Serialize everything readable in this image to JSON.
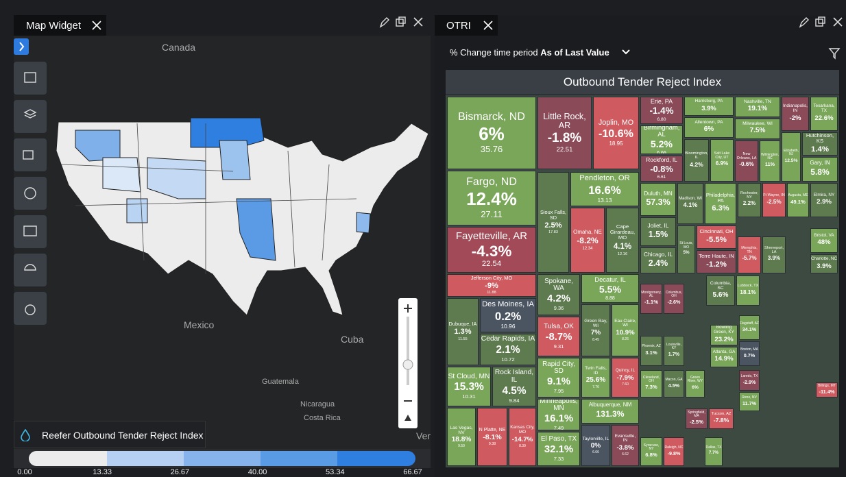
{
  "map_widget": {
    "title": "Map Widget",
    "places": [
      "Canada",
      "Mexico",
      "Cuba",
      "Guatemala",
      "Nicaragua",
      "Costa Rica",
      "Ver"
    ],
    "layer": "Reefer Outbound Tender Reject Index",
    "scale": [
      "0.00",
      "13.33",
      "26.67",
      "40.00",
      "53.34",
      "66.67"
    ]
  },
  "otri": {
    "tab": "OTRI",
    "period_label": "% Change time period",
    "period_value": "As of Last Value",
    "title": "Outbound Tender Reject Index",
    "tiles": [
      {
        "name": "Bismarck, ND",
        "change": "6%",
        "value": "35.76"
      },
      {
        "name": "Fargo, ND",
        "change": "12.4%",
        "value": "27.11"
      },
      {
        "name": "Fayetteville, AR",
        "change": "-4.3%",
        "value": "22.54"
      },
      {
        "name": "Little Rock, AR",
        "change": "-1.8%",
        "value": "22.51"
      },
      {
        "name": "Joplin, MO",
        "change": "-10.6%",
        "value": "18.95"
      },
      {
        "name": "Sioux Falls, SD",
        "change": "2.5%",
        "value": "17.83"
      },
      {
        "name": "Pendleton, OR",
        "change": "16.6%",
        "value": "13.13"
      },
      {
        "name": "Omaha, NE",
        "change": "-8.2%",
        "value": "12.34"
      },
      {
        "name": "Cape Girardeau, MO",
        "change": "4.1%",
        "value": "12.16"
      },
      {
        "name": "Jefferson City, MO",
        "change": "-9%",
        "value": "11.88"
      },
      {
        "name": "Dubuque, IA",
        "change": "1.3%",
        "value": "11.55"
      },
      {
        "name": "Des Moines, IA",
        "change": "0.2%",
        "value": "10.96"
      },
      {
        "name": "Cedar Rapids, IA",
        "change": "2.1%",
        "value": "10.72"
      },
      {
        "name": "St Cloud, MN",
        "change": "15.3%",
        "value": "10.31"
      },
      {
        "name": "Rock Island, IL",
        "change": "4.5%",
        "value": "9.84"
      },
      {
        "name": "Las Vegas, NV",
        "change": "18.8%",
        "value": "9.50"
      },
      {
        "name": "N Platte, NE",
        "change": "-8.1%",
        "value": "9.38"
      },
      {
        "name": "Kansas City, MO",
        "change": "-14.7%",
        "value": "8.39"
      },
      {
        "name": "Spokane, WA",
        "change": "4.2%",
        "value": "9.36"
      },
      {
        "name": "Decatur, IL",
        "change": "5.5%",
        "value": "8.88"
      },
      {
        "name": "Tulsa, OK",
        "change": "-8.7%",
        "value": "9.31"
      },
      {
        "name": "Green Bay, WI",
        "change": "7%",
        "value": "8.45"
      },
      {
        "name": "Eau Claire, WI",
        "change": "10.9%",
        "value": "8.26"
      },
      {
        "name": "Rapid City, SD",
        "change": "9.1%",
        "value": "7.95"
      },
      {
        "name": "Twin Falls, ID",
        "change": "25.6%",
        "value": "7.76"
      },
      {
        "name": "Quincy, IL",
        "change": "-7.9%",
        "value": "7.60"
      },
      {
        "name": "Minneapolis, MN",
        "change": "16.1%",
        "value": "7.49"
      },
      {
        "name": "Albuquerque, NM",
        "change": "131.3%"
      },
      {
        "name": "El Paso, TX",
        "change": "32.1%",
        "value": "7.33"
      },
      {
        "name": "Taylorville, IL",
        "change": "0%",
        "value": "6.66"
      },
      {
        "name": "Evansville, IN",
        "change": "-3.8%",
        "value": "6.62"
      },
      {
        "name": "Erie, PA",
        "change": "-1.4%",
        "value": "6.80"
      },
      {
        "name": "Birmingham, AL",
        "change": "5.2%",
        "value": "6.66"
      },
      {
        "name": "Rockford, IL",
        "change": "-0.8%",
        "value": "6.61"
      },
      {
        "name": "Harrisburg, PA",
        "change": "3.9%"
      },
      {
        "name": "Allentown, PA",
        "change": "6%"
      },
      {
        "name": "Bloomington, IL",
        "change": "4.2%"
      },
      {
        "name": "Salt Lake City, UT",
        "change": "6.9%"
      },
      {
        "name": "Nashville, TN",
        "change": "19.1%"
      },
      {
        "name": "Milwaukee, WI",
        "change": "7.5%"
      },
      {
        "name": "New Orleans, LA",
        "change": "-0.6%"
      },
      {
        "name": "Wilmington, NC",
        "change": "11%"
      },
      {
        "name": "Indianapolis, IN",
        "change": "-2%"
      },
      {
        "name": "Texarkana, TX",
        "change": "22.6%"
      },
      {
        "name": "Elizabeth, NJ",
        "change": "12.5%"
      },
      {
        "name": "Hutchinson, KS",
        "change": "1.4%"
      },
      {
        "name": "Gary, IN",
        "change": "5.8%"
      },
      {
        "name": "Duluth, MN",
        "change": "57.3%"
      },
      {
        "name": "Madison, WI",
        "change": "4.1%"
      },
      {
        "name": "Philadelphia, PA",
        "change": "6.3%"
      },
      {
        "name": "Rochester, NY",
        "change": "2.2%"
      },
      {
        "name": "Ft Wayne, IN",
        "change": "-2.5%"
      },
      {
        "name": "Augusta, ME",
        "change": "49.1%"
      },
      {
        "name": "Elmira, NY",
        "change": "2.9%"
      },
      {
        "name": "Joliet, IL",
        "change": "1.5%"
      },
      {
        "name": "St Louis, MO",
        "change": "5%"
      },
      {
        "name": "Cincinnati, OH",
        "change": "-5.5%"
      },
      {
        "name": "Terre Haute, IN",
        "change": "-1.2%"
      },
      {
        "name": "Chicago, IL",
        "change": "2.4%"
      },
      {
        "name": "Memphis, TN",
        "change": "-5.7%"
      },
      {
        "name": "Shreveport, LA",
        "change": "3.9%"
      },
      {
        "name": "Bristol, VA",
        "change": "48%"
      },
      {
        "name": "Charlotte, NC",
        "change": "3.9%"
      },
      {
        "name": "Columbia, SC",
        "change": "5.6%"
      },
      {
        "name": "Lubbock, TX",
        "change": "18.1%"
      },
      {
        "name": "Columbus, OH",
        "change": "-2.6%"
      },
      {
        "name": "Montgomery, AL",
        "change": "-1.1%"
      },
      {
        "name": "Phoenix, AZ",
        "change": "3.1%"
      },
      {
        "name": "Louisville, KY",
        "change": "1.7%"
      },
      {
        "name": "Bowling Green, KY",
        "change": "23.2%"
      },
      {
        "name": "Atlanta, GA",
        "change": "14.9%"
      },
      {
        "name": "Flagstaff, AZ",
        "change": "34.1%"
      },
      {
        "name": "Cleveland, OH",
        "change": "7.3%"
      },
      {
        "name": "Macon, GA",
        "change": "4.5%"
      },
      {
        "name": "Green River, WY",
        "change": "6%"
      },
      {
        "name": "Boston, MA",
        "change": "0.7%"
      },
      {
        "name": "Laredo, TX",
        "change": "-2.9%"
      },
      {
        "name": "Reno, NV",
        "change": "11.7%"
      },
      {
        "name": "Springfield, MA",
        "change": "-2.5%"
      },
      {
        "name": "Tucson, AZ",
        "change": "-7.8%"
      },
      {
        "name": "Syracuse, NY",
        "change": "6.8%"
      },
      {
        "name": "Raleigh, NC",
        "change": "-9.8%"
      },
      {
        "name": "Dallas, TX",
        "change": "7.7%"
      },
      {
        "name": "Billings, MT",
        "change": "-11.4%"
      }
    ]
  }
}
